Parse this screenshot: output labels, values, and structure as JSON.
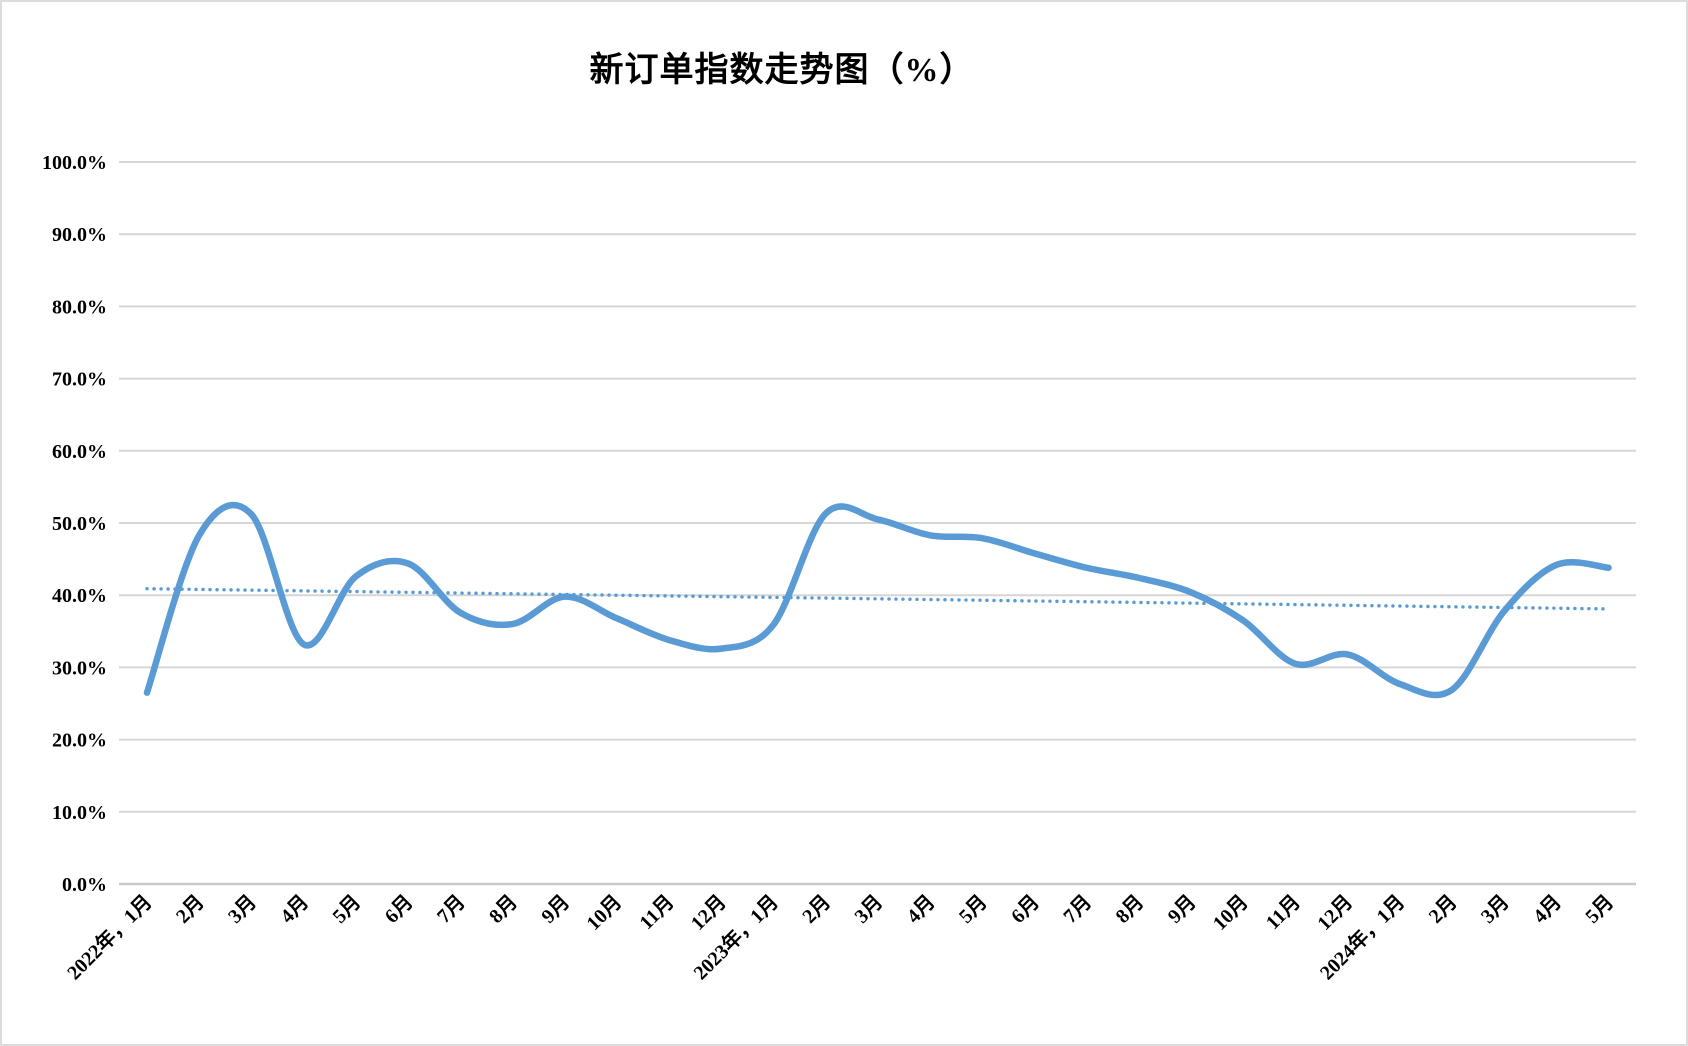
{
  "page": {
    "title": "新订单指数走势图（%）"
  },
  "chart_data": {
    "type": "line",
    "title": "新订单指数走势图（%）",
    "categories": [
      "2022年，1月",
      "2月",
      "3月",
      "4月",
      "5月",
      "6月",
      "7月",
      "8月",
      "9月",
      "10月",
      "11月",
      "12月",
      "2023年，1月",
      "2月",
      "3月",
      "4月",
      "5月",
      "6月",
      "7月",
      "8月",
      "9月",
      "10月",
      "11月",
      "12月",
      "2024年，1月",
      "2月",
      "3月",
      "4月",
      "5月"
    ],
    "series": [
      {
        "name": "新订单指数",
        "style": "smooth",
        "color": "#5B9BD5",
        "values": [
          26.5,
          48.3,
          51.2,
          33.2,
          42.6,
          44.4,
          37.6,
          36.0,
          39.8,
          36.8,
          33.8,
          32.6,
          35.9,
          51.3,
          50.5,
          48.3,
          47.9,
          45.8,
          43.8,
          42.4,
          40.4,
          36.5,
          30.5,
          31.8,
          27.7,
          26.9,
          37.8,
          44.2,
          43.8
        ]
      }
    ],
    "trendline": {
      "name": "线性趋势线",
      "style": "dotted",
      "color": "#5B9BD5",
      "start_value": 40.9,
      "end_value": 38.1
    },
    "y_axis": {
      "min": 0,
      "max": 100,
      "ticks": [
        "0.0%",
        "10.0%",
        "20.0%",
        "30.0%",
        "40.0%",
        "50.0%",
        "60.0%",
        "70.0%",
        "80.0%",
        "90.0%",
        "100.0%"
      ]
    },
    "xlabel": "",
    "ylabel": "",
    "grid": true,
    "legend_position": "none",
    "x_label_rotation_deg": 45
  },
  "colors": {
    "line": "#5B9BD5",
    "grid": "#D6D6D6",
    "axis": "#C9C9C9",
    "text": "#000000",
    "background": "#FFFFFF",
    "border": "#DCDCDC"
  }
}
